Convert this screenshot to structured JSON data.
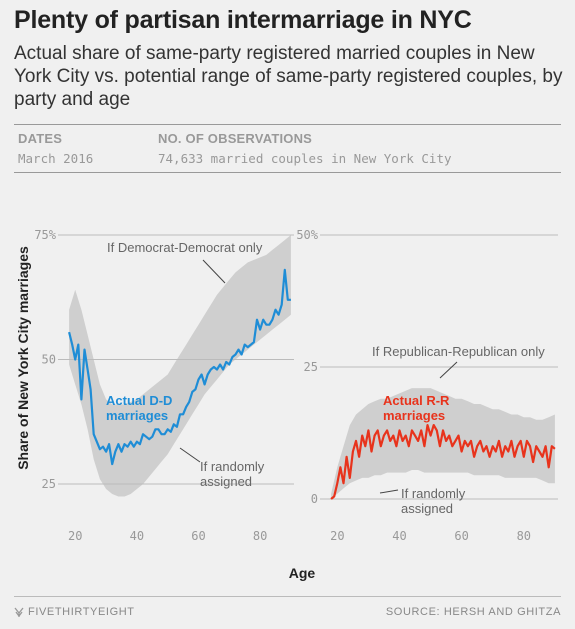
{
  "title": "Plenty of partisan intermarriage in NYC",
  "subtitle": "Actual share of same-party registered married couples in New York City vs. potential range of same-party registered couples, by party and age",
  "meta": {
    "dates_header": "DATES",
    "dates_value": "March 2016",
    "obs_header": "NO. OF OBSERVATIONS",
    "obs_value": "74,633 married couples in New York City"
  },
  "footer": {
    "brand": "FIVETHIRTYEIGHT",
    "source": "SOURCE: HERSH AND GHITZA"
  },
  "colors": {
    "dem": "#1f8dd6",
    "rep": "#e8331c",
    "band": "#cfcfcf",
    "background": "#f0f0f0"
  },
  "chart_data": [
    {
      "type": "line",
      "ylabel": "Share of New York City marriages",
      "xlabel": "Age",
      "xlim": [
        17,
        91
      ],
      "ylim": [
        22,
        75
      ],
      "xticks": [
        20,
        40,
        60,
        80
      ],
      "xtick_labels": [
        "20",
        "40",
        "60",
        "80"
      ],
      "yticks": [
        75,
        50,
        25
      ],
      "ytick_labels": [
        "75%",
        "50",
        "25"
      ],
      "band_label_top": "If Democrat-Democrat only",
      "band_label_bottom": "If randomly assigned",
      "series_label": "Actual D-D marriages",
      "series": [
        {
          "name": "Actual D-D marriages",
          "color": "#1f8dd6",
          "x": [
            18,
            19,
            20,
            21,
            22,
            23,
            24,
            25,
            26,
            27,
            28,
            29,
            30,
            31,
            32,
            33,
            34,
            35,
            36,
            37,
            38,
            39,
            40,
            41,
            42,
            43,
            44,
            45,
            46,
            47,
            48,
            49,
            50,
            51,
            52,
            53,
            54,
            55,
            56,
            57,
            58,
            59,
            60,
            61,
            62,
            63,
            64,
            65,
            66,
            67,
            68,
            69,
            70,
            71,
            72,
            73,
            74,
            75,
            76,
            77,
            78,
            79,
            80,
            81,
            82,
            83,
            84,
            85,
            86,
            87,
            88,
            89,
            90
          ],
          "y": [
            55.5,
            53,
            50,
            53,
            42,
            52,
            48,
            44,
            35,
            33.5,
            32,
            32.5,
            31.5,
            33,
            29,
            31.5,
            33,
            31.5,
            33,
            32.5,
            33.5,
            32.5,
            33.5,
            33,
            35,
            34.5,
            34,
            34.5,
            36,
            36,
            35,
            35,
            36,
            35.5,
            37,
            36.5,
            39,
            39,
            40.5,
            41.5,
            43.5,
            44,
            46,
            47,
            45,
            47,
            48,
            48.5,
            48,
            49,
            48,
            49.5,
            49,
            50.5,
            51,
            52,
            51,
            53,
            52.5,
            53,
            53.5,
            58,
            56,
            58,
            57,
            57,
            58,
            60,
            59,
            61,
            68,
            62,
            62
          ]
        },
        {
          "name": "If randomly assigned",
          "x": [
            18,
            20,
            22,
            24,
            26,
            28,
            30,
            32,
            34,
            36,
            38,
            40,
            42,
            44,
            46,
            48,
            50,
            52,
            54,
            56,
            58,
            60,
            62,
            64,
            66,
            68,
            70,
            72,
            74,
            76,
            78,
            80,
            82,
            84,
            86,
            88,
            90
          ],
          "y": [
            49,
            45,
            41,
            36,
            30,
            26,
            24,
            23,
            22.5,
            22.5,
            23,
            24,
            25,
            26.5,
            28,
            29.5,
            31,
            33,
            35,
            37,
            39,
            41,
            43,
            44.5,
            46,
            47.5,
            49,
            50,
            51,
            52,
            53,
            54,
            55,
            56,
            57,
            58,
            59
          ]
        },
        {
          "name": "If Democrat-Democrat only",
          "x": [
            18,
            20,
            22,
            24,
            26,
            28,
            30,
            32,
            34,
            36,
            38,
            40,
            42,
            44,
            46,
            48,
            50,
            52,
            54,
            56,
            58,
            60,
            62,
            64,
            66,
            68,
            70,
            72,
            74,
            76,
            78,
            80,
            82,
            84,
            86,
            88,
            90
          ],
          "y": [
            60,
            64,
            60,
            55,
            50,
            45,
            42,
            41,
            41,
            41,
            41.5,
            42,
            43,
            44,
            45,
            46,
            47,
            49,
            51,
            53,
            55,
            57,
            59,
            61,
            63,
            64.5,
            66,
            67.5,
            68.5,
            69.5,
            70,
            70.5,
            71,
            72,
            73,
            74,
            75
          ]
        }
      ]
    },
    {
      "type": "line",
      "xlabel": "Age",
      "xlim": [
        17,
        91
      ],
      "ylim": [
        0,
        50
      ],
      "xticks": [
        20,
        40,
        60,
        80
      ],
      "xtick_labels": [
        "20",
        "40",
        "60",
        "80"
      ],
      "yticks": [
        50,
        25,
        0
      ],
      "ytick_labels": [
        "50%",
        "25",
        "0"
      ],
      "band_label_top": "If Republican-Republican only",
      "band_label_bottom": "If randomly assigned",
      "series_label": "Actual R-R marriages",
      "series": [
        {
          "name": "Actual R-R marriages",
          "color": "#e8331c",
          "x": [
            18,
            19,
            20,
            21,
            22,
            23,
            24,
            25,
            26,
            27,
            28,
            29,
            30,
            31,
            32,
            33,
            34,
            35,
            36,
            37,
            38,
            39,
            40,
            41,
            42,
            43,
            44,
            45,
            46,
            47,
            48,
            49,
            50,
            51,
            52,
            53,
            54,
            55,
            56,
            57,
            58,
            59,
            60,
            61,
            62,
            63,
            64,
            65,
            66,
            67,
            68,
            69,
            70,
            71,
            72,
            73,
            74,
            75,
            76,
            77,
            78,
            79,
            80,
            81,
            82,
            83,
            84,
            85,
            86,
            87,
            88,
            89,
            90
          ],
          "y": [
            0,
            0.5,
            3,
            6,
            3,
            8,
            4,
            9,
            11,
            8,
            12,
            10,
            13,
            9,
            12,
            13,
            10,
            12,
            13,
            11,
            12,
            10,
            13,
            11,
            12,
            10,
            13,
            12,
            11,
            13,
            10,
            14,
            12,
            14,
            13,
            10,
            13,
            11,
            12,
            10,
            11,
            12,
            9,
            11,
            10,
            11,
            8,
            10,
            11,
            9,
            10,
            8,
            10,
            9,
            11,
            8,
            10,
            9,
            11,
            8,
            10,
            11,
            8,
            11,
            10,
            7,
            10,
            9,
            8,
            10,
            6,
            10,
            9.5
          ]
        },
        {
          "name": "If randomly assigned",
          "x": [
            18,
            20,
            22,
            24,
            26,
            28,
            30,
            32,
            34,
            36,
            38,
            40,
            42,
            44,
            46,
            48,
            50,
            52,
            54,
            56,
            58,
            60,
            62,
            64,
            66,
            68,
            70,
            72,
            74,
            76,
            78,
            80,
            82,
            84,
            86,
            88,
            90
          ],
          "y": [
            0,
            1,
            2,
            3,
            3.5,
            4,
            4,
            4.5,
            4.5,
            5,
            5,
            5,
            5,
            5.5,
            5.5,
            5,
            5,
            5,
            5,
            5,
            5,
            5,
            5,
            4.5,
            4.5,
            4.5,
            4.5,
            4.5,
            4,
            4,
            4,
            4,
            4,
            4,
            3.5,
            3,
            3
          ]
        },
        {
          "name": "If Republican-Republican only",
          "x": [
            18,
            20,
            22,
            24,
            26,
            28,
            30,
            32,
            34,
            36,
            38,
            40,
            42,
            44,
            46,
            48,
            50,
            52,
            54,
            56,
            58,
            60,
            62,
            64,
            66,
            68,
            70,
            72,
            74,
            76,
            78,
            80,
            82,
            84,
            86,
            88,
            90
          ],
          "y": [
            1,
            6,
            10,
            14,
            16,
            17,
            18,
            18.5,
            19,
            19,
            19.5,
            20,
            20.5,
            21,
            21,
            21,
            21,
            20.5,
            20,
            19.5,
            19,
            19,
            18.5,
            18,
            18,
            17.5,
            17,
            17,
            16.5,
            16,
            16,
            15.5,
            15.5,
            15,
            15,
            15.5,
            16
          ]
        }
      ]
    }
  ]
}
